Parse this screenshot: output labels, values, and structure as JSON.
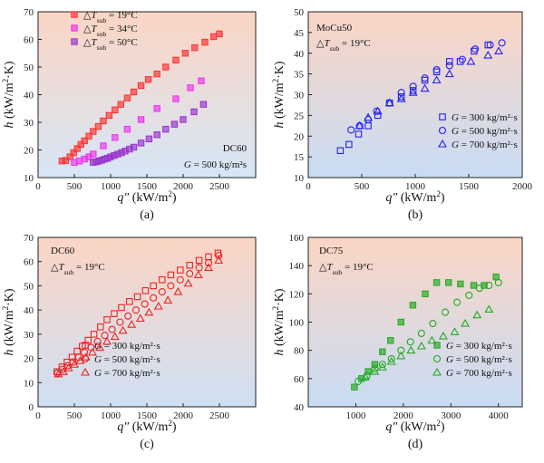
{
  "chart_data": [
    {
      "type": "scatter",
      "panel_label": "(a)",
      "xlabel_main": "q″",
      "xlabel_unit": "(kW/m",
      "xlabel_unit_sup": "2",
      "xlabel_unit_end": ")",
      "ylabel_main": "h",
      "ylabel_unit": "(kW/m",
      "ylabel_unit_sup": "2",
      "ylabel_unit_end": "·K)",
      "xlim": [
        0,
        3000
      ],
      "ylim": [
        10,
        70
      ],
      "xticks": [
        0,
        500,
        1000,
        1500,
        2000,
        2500
      ],
      "yticks": [
        10,
        20,
        30,
        40,
        50,
        60,
        70
      ],
      "legend_position": "top-left",
      "annotation": [
        "DC60",
        "G = 500 kg/m²s"
      ],
      "series": [
        {
          "name": "ΔT_sub = 19°C",
          "marker": "square-filled",
          "color": "#ff3333",
          "x": [
            330,
            380,
            440,
            490,
            540,
            590,
            640,
            700,
            760,
            830,
            900,
            980,
            1060,
            1140,
            1230,
            1320,
            1420,
            1520,
            1640,
            1760,
            1900,
            2030,
            2160,
            2300,
            2420,
            2500
          ],
          "y": [
            16.0,
            16.2,
            17.5,
            19.0,
            20.5,
            22.0,
            23.3,
            25.0,
            26.7,
            28.5,
            30.5,
            32.5,
            34.5,
            36.5,
            38.8,
            41.0,
            43.3,
            45.5,
            47.5,
            50.0,
            52.5,
            55.0,
            57.0,
            59.0,
            61.0,
            62.0
          ]
        },
        {
          "name": "ΔT_sub = 34°C",
          "marker": "square-filled",
          "color": "#ee33ee",
          "x": [
            500,
            570,
            640,
            700,
            760,
            900,
            1060,
            1230,
            1420,
            1640,
            1900,
            2100,
            2250
          ],
          "y": [
            15.5,
            16.0,
            16.7,
            17.5,
            18.5,
            21.5,
            24.5,
            27.5,
            31.0,
            35.0,
            38.5,
            42.5,
            45.0
          ]
        },
        {
          "name": "ΔT_sub = 50°C",
          "marker": "square-filled",
          "color": "#9933cc",
          "x": [
            760,
            800,
            840,
            880,
            920,
            960,
            1000,
            1050,
            1100,
            1150,
            1200,
            1260,
            1320,
            1420,
            1530,
            1640,
            1760,
            1880,
            2000,
            2150,
            2280
          ],
          "y": [
            15.5,
            15.7,
            16.0,
            16.3,
            16.7,
            17.0,
            17.5,
            18.0,
            18.5,
            19.0,
            19.6,
            20.3,
            21.0,
            22.5,
            24.0,
            25.5,
            27.5,
            29.3,
            31.0,
            33.8,
            36.5
          ]
        }
      ]
    },
    {
      "type": "scatter",
      "panel_label": "(b)",
      "xlabel_main": "q″",
      "xlabel_unit": "(kW/m",
      "xlabel_unit_sup": "2",
      "xlabel_unit_end": ")",
      "ylabel_main": "h",
      "ylabel_unit": "(kW/m",
      "ylabel_unit_sup": "2",
      "ylabel_unit_end": "·K)",
      "xlim": [
        0,
        2000
      ],
      "ylim": [
        10,
        50
      ],
      "xticks": [
        0,
        500,
        1000,
        1500,
        2000
      ],
      "yticks": [
        10,
        15,
        20,
        25,
        30,
        35,
        40,
        45,
        50
      ],
      "legend_position": "bottom-right",
      "annotation": [
        "MoCu50",
        "ΔT_sub = 19°C"
      ],
      "series": [
        {
          "name": "G = 300 kg/m²·s",
          "marker": "square-open",
          "color": "#2222ee",
          "x": [
            300,
            380,
            470,
            560,
            650,
            760,
            870,
            980,
            1090,
            1200,
            1320,
            1420,
            1550,
            1680
          ],
          "y": [
            16.5,
            18.0,
            20.5,
            22.5,
            25.0,
            28.0,
            29.5,
            31.0,
            33.5,
            35.5,
            38.0,
            38.0,
            40.5,
            42.0
          ]
        },
        {
          "name": "G = 500 kg/m²·s",
          "marker": "circle-open",
          "color": "#2222ee",
          "x": [
            400,
            480,
            560,
            640,
            760,
            870,
            980,
            1090,
            1200,
            1320,
            1440,
            1560,
            1700,
            1810
          ],
          "y": [
            21.5,
            22.5,
            24.0,
            26.0,
            28.0,
            30.5,
            32.0,
            34.0,
            36.0,
            37.0,
            38.5,
            41.0,
            42.0,
            42.5
          ]
        },
        {
          "name": "G = 700 kg/m²·s",
          "marker": "triangle-open",
          "color": "#2222ee",
          "x": [
            480,
            560,
            650,
            760,
            870,
            980,
            1090,
            1200,
            1320,
            1520,
            1680,
            1780
          ],
          "y": [
            22.5,
            24.5,
            26.0,
            28.0,
            29.0,
            30.5,
            31.5,
            33.5,
            35.0,
            38.0,
            39.5,
            40.5
          ]
        }
      ]
    },
    {
      "type": "scatter",
      "panel_label": "(c)",
      "xlabel_main": "q″",
      "xlabel_unit": "(kW/m",
      "xlabel_unit_sup": "2",
      "xlabel_unit_end": ")",
      "ylabel_main": "h",
      "ylabel_unit": "(kW/m",
      "ylabel_unit_sup": "2",
      "ylabel_unit_end": "·K)",
      "xlim": [
        0,
        3000
      ],
      "ylim": [
        0,
        70
      ],
      "xticks": [
        0,
        500,
        1000,
        1500,
        2000,
        2500
      ],
      "yticks": [
        0,
        10,
        20,
        30,
        40,
        50,
        60,
        70
      ],
      "legend_position": "bottom-right",
      "annotation": [
        "DC60",
        "ΔT_sub = 19°C"
      ],
      "series": [
        {
          "name": "G = 300 kg/m²·s",
          "marker": "square-open",
          "color": "#ee2222",
          "x": [
            260,
            330,
            400,
            470,
            540,
            610,
            690,
            770,
            860,
            950,
            1050,
            1150,
            1260,
            1370,
            1480,
            1590,
            1710,
            1830,
            1960,
            2090,
            2220,
            2350,
            2480
          ],
          "y": [
            14.5,
            16.5,
            18.5,
            20.5,
            23.0,
            25.0,
            27.5,
            30.0,
            33.0,
            36.0,
            38.5,
            41.0,
            43.5,
            45.5,
            48.0,
            50.0,
            52.5,
            54.5,
            56.5,
            58.5,
            60.5,
            62.0,
            63.5
          ]
        },
        {
          "name": "G = 500 kg/m²·s",
          "marker": "circle-open",
          "color": "#ee2222",
          "x": [
            270,
            340,
            410,
            480,
            560,
            640,
            730,
            820,
            920,
            1020,
            1130,
            1240,
            1350,
            1470,
            1590,
            1710,
            1830,
            1960,
            2090,
            2220,
            2350,
            2490
          ],
          "y": [
            14.0,
            15.5,
            17.0,
            18.5,
            20.5,
            22.5,
            24.5,
            27.0,
            29.5,
            32.0,
            35.0,
            37.5,
            40.0,
            42.5,
            45.0,
            47.5,
            50.0,
            52.5,
            55.0,
            57.5,
            59.5,
            62.5
          ]
        },
        {
          "name": "G = 700 kg/m²·s",
          "marker": "triangle-open",
          "color": "#ee2222",
          "x": [
            280,
            350,
            420,
            500,
            580,
            660,
            750,
            850,
            950,
            1060,
            1170,
            1290,
            1410,
            1530,
            1660,
            1790,
            1930,
            2070,
            2210,
            2350,
            2490
          ],
          "y": [
            13.5,
            14.5,
            16.0,
            17.5,
            19.0,
            20.5,
            22.5,
            24.5,
            27.0,
            29.0,
            31.5,
            34.0,
            36.5,
            39.0,
            41.5,
            44.0,
            47.5,
            51.0,
            54.5,
            57.5,
            60.5
          ]
        }
      ]
    },
    {
      "type": "scatter",
      "panel_label": "(d)",
      "xlabel_main": "q″",
      "xlabel_unit": "(kW/m",
      "xlabel_unit_sup": "2",
      "xlabel_unit_end": ")",
      "ylabel_main": "h",
      "ylabel_unit": "(kW/m",
      "ylabel_unit_sup": "2",
      "ylabel_unit_end": "·K)",
      "xlim": [
        0,
        4500
      ],
      "ylim": [
        40,
        160
      ],
      "xticks": [
        1000,
        2000,
        3000,
        4000
      ],
      "yticks": [
        40,
        60,
        80,
        100,
        120,
        140,
        160
      ],
      "legend_position": "bottom-right",
      "annotation": [
        "DC75",
        "ΔT_sub = 19°C"
      ],
      "series": [
        {
          "name": "G = 300 kg/m²·s",
          "marker": "square-filled",
          "color": "#22aa22",
          "x": [
            970,
            1120,
            1260,
            1400,
            1560,
            1730,
            1950,
            2200,
            2460,
            2700,
            2950,
            3200,
            3480,
            3700,
            3950
          ],
          "y": [
            54,
            60,
            65,
            70,
            79,
            87,
            100,
            112,
            120,
            128,
            128,
            127,
            126,
            126,
            132
          ]
        },
        {
          "name": "G = 500 kg/m²·s",
          "marker": "circle-open",
          "color": "#22aa22",
          "x": [
            1050,
            1230,
            1400,
            1560,
            1750,
            1950,
            2150,
            2380,
            2620,
            2880,
            3130,
            3380,
            3600,
            3800,
            4000
          ],
          "y": [
            58,
            62,
            67,
            70,
            74,
            80,
            86,
            92,
            99,
            107,
            114,
            119,
            124,
            126,
            128
          ]
        },
        {
          "name": "G = 700 kg/m²·s",
          "marker": "triangle-open",
          "color": "#22aa22",
          "x": [
            1200,
            1400,
            1560,
            1750,
            1950,
            2160,
            2380,
            2600,
            2840,
            3080,
            3300,
            3550,
            3800
          ],
          "y": [
            61,
            65,
            68,
            72,
            76,
            80,
            83,
            87,
            90,
            93,
            99,
            105,
            109
          ]
        }
      ]
    }
  ]
}
